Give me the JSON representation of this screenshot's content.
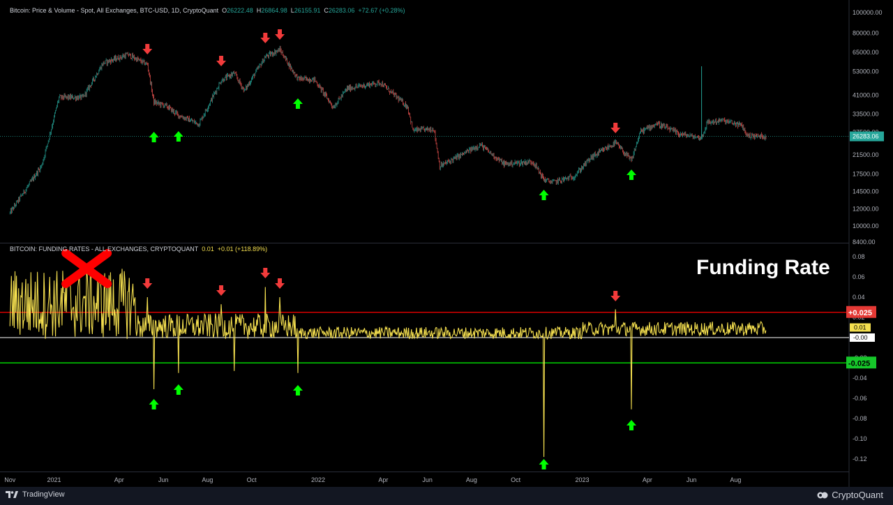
{
  "price_header": {
    "title": "Bitcoin: Price & Volume - Spot, All Exchanges, BTC-USD, 1D, CryptoQuant",
    "o_label": "O",
    "o": "26222.48",
    "h_label": "H",
    "h": "26864.98",
    "l_label": "L",
    "l": "26155.91",
    "c_label": "C",
    "c": "26283.06",
    "change": "+72.67 (+0.28%)"
  },
  "funding_header": {
    "title": "BITCOIN: FUNDING RATES - ALL EXCHANGES, CRYPTOQUANT",
    "value": "0.01",
    "change": "+0.01 (+118.89%)"
  },
  "overlay_label": "Funding Rate",
  "footer": {
    "left": "TradingView",
    "right": "CryptoQuant"
  },
  "colors": {
    "background": "#000000",
    "up_candle": "#26a69a",
    "down_candle": "#ef5350",
    "funding_line": "#f4df4f",
    "upper_threshold": "#ff0000",
    "lower_threshold": "#00ff00",
    "arrow_up": "#00ff00",
    "arrow_down": "#f23b3b",
    "cross": "#ff0000"
  },
  "chart_data": [
    {
      "type": "line",
      "name": "BTC price",
      "log_scale": true,
      "y_axis_ticks": [
        "100000.00",
        "80000.00",
        "65000.00",
        "53000.00",
        "41000.00",
        "33500.00",
        "27500.00",
        "21500.00",
        "17500.00",
        "14500.00",
        "12000.00",
        "10000.00",
        "8400.00"
      ],
      "last_value_label": "26283.06",
      "x": [
        "2020-11-01",
        "2020-12-15",
        "2021-01-08",
        "2021-02-10",
        "2021-03-10",
        "2021-04-13",
        "2021-05-10",
        "2021-05-19",
        "2021-06-05",
        "2021-06-22",
        "2021-07-20",
        "2021-08-20",
        "2021-09-07",
        "2021-09-21",
        "2021-10-20",
        "2021-11-09",
        "2021-11-26",
        "2021-12-04",
        "2021-12-27",
        "2022-01-22",
        "2022-02-10",
        "2022-03-28",
        "2022-05-05",
        "2022-05-12",
        "2022-06-10",
        "2022-06-18",
        "2022-08-13",
        "2022-09-15",
        "2022-10-25",
        "2022-11-09",
        "2022-11-21",
        "2022-12-20",
        "2023-01-14",
        "2023-02-16",
        "2023-03-10",
        "2023-03-22",
        "2023-04-14",
        "2023-05-15",
        "2023-06-15",
        "2023-06-23",
        "2023-07-14",
        "2023-08-10",
        "2023-08-17",
        "2023-09-12"
      ],
      "values": [
        11500,
        19200,
        40000,
        40000,
        58000,
        63500,
        57000,
        38000,
        36500,
        33000,
        30000,
        48000,
        52000,
        43000,
        62000,
        67000,
        54000,
        49000,
        48500,
        36000,
        44000,
        47000,
        36000,
        28000,
        28500,
        19000,
        24000,
        19500,
        20000,
        16500,
        16000,
        17000,
        21000,
        24500,
        20200,
        27500,
        30200,
        27000,
        25800,
        30500,
        31200,
        29500,
        26500,
        26283
      ]
    },
    {
      "type": "line",
      "name": "Funding rate",
      "y_axis_ticks": [
        "0.08",
        "0.06",
        "0.04",
        "0.02",
        "0.00",
        "-0.02",
        "-0.04",
        "-0.06",
        "-0.08",
        "-0.10",
        "-0.12"
      ],
      "y_range": [
        -0.13,
        0.09
      ],
      "thresholds": [
        0.025,
        -0.025
      ],
      "threshold_labels": [
        "+0.025",
        "-0.025"
      ],
      "last_value_label": "0.01",
      "zero_label": "-0.00",
      "spikes": [
        {
          "x": "2021-05-19",
          "value": -0.051
        },
        {
          "x": "2021-06-22",
          "value": -0.035
        },
        {
          "x": "2021-09-07",
          "value": -0.033
        },
        {
          "x": "2021-12-04",
          "value": -0.035
        },
        {
          "x": "2022-11-09",
          "value": -0.118
        },
        {
          "x": "2023-03-10",
          "value": -0.071
        },
        {
          "x": "2021-05-10",
          "value": 0.04
        },
        {
          "x": "2021-08-20",
          "value": 0.033
        },
        {
          "x": "2021-10-20",
          "value": 0.05
        },
        {
          "x": "2021-11-09",
          "value": 0.04
        },
        {
          "x": "2023-02-16",
          "value": 0.028
        }
      ]
    }
  ],
  "x_axis_ticks": [
    "Nov",
    "2021",
    "Apr",
    "Jun",
    "Aug",
    "Oct",
    "2022",
    "Apr",
    "Jun",
    "Aug",
    "Oct",
    "2023",
    "Apr",
    "Jun",
    "Aug"
  ],
  "annotations": {
    "price_down_arrows": [
      "2021-05-10",
      "2021-08-20",
      "2021-10-20",
      "2021-11-09",
      "2023-02-16"
    ],
    "price_up_arrows": [
      "2021-05-19",
      "2021-06-22",
      "2021-12-04",
      "2022-11-09",
      "2023-03-10"
    ],
    "fr_down_arrows": [
      "2021-05-10",
      "2021-08-20",
      "2021-10-20",
      "2021-11-09",
      "2023-02-16"
    ],
    "fr_up_arrows": [
      "2021-05-19",
      "2021-06-22",
      "2021-12-04",
      "2022-11-09",
      "2023-03-10"
    ],
    "cross_at": "2021-02-15"
  }
}
